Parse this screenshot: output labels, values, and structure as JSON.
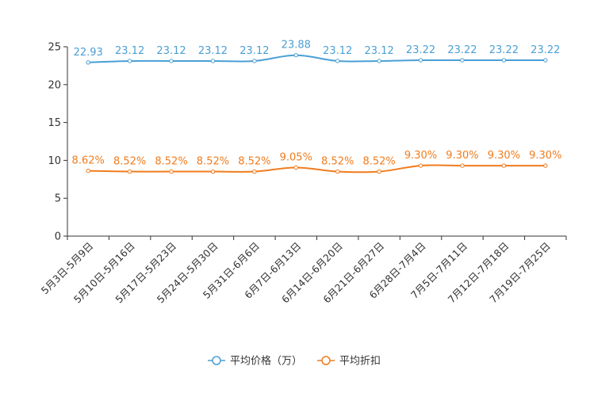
{
  "chart_data": {
    "type": "line",
    "categories": [
      "5月3日-5月9日",
      "5月10日-5月16日",
      "5月17日-5月23日",
      "5月24日-5月30日",
      "5月31日-6月6日",
      "6月7日-6月13日",
      "6月14日-6月20日",
      "6月21日-6月27日",
      "6月28日-7月4日",
      "7月5日-7月11日",
      "7月12日-7月18日",
      "7月19日-7月25日"
    ],
    "series": [
      {
        "name": "平均价格（万）",
        "color": "#4a9fd5",
        "values": [
          22.93,
          23.12,
          23.12,
          23.12,
          23.12,
          23.88,
          23.12,
          23.12,
          23.22,
          23.22,
          23.22,
          23.22
        ],
        "labels": [
          "22.93",
          "23.12",
          "23.12",
          "23.12",
          "23.12",
          "23.88",
          "23.12",
          "23.12",
          "23.22",
          "23.22",
          "23.22",
          "23.22"
        ]
      },
      {
        "name": "平均折扣",
        "color": "#f07c1e",
        "values": [
          8.62,
          8.52,
          8.52,
          8.52,
          8.52,
          9.05,
          8.52,
          8.52,
          9.3,
          9.3,
          9.3,
          9.3
        ],
        "labels": [
          "8.62%",
          "8.52%",
          "8.52%",
          "8.52%",
          "8.52%",
          "9.05%",
          "8.52%",
          "8.52%",
          "9.30%",
          "9.30%",
          "9.30%",
          "9.30%"
        ]
      }
    ],
    "ylim": [
      0,
      25
    ],
    "yticks": [
      0,
      5,
      10,
      15,
      20,
      25
    ],
    "title": "",
    "xlabel": "",
    "ylabel": "",
    "legend_position": "bottom-center"
  }
}
